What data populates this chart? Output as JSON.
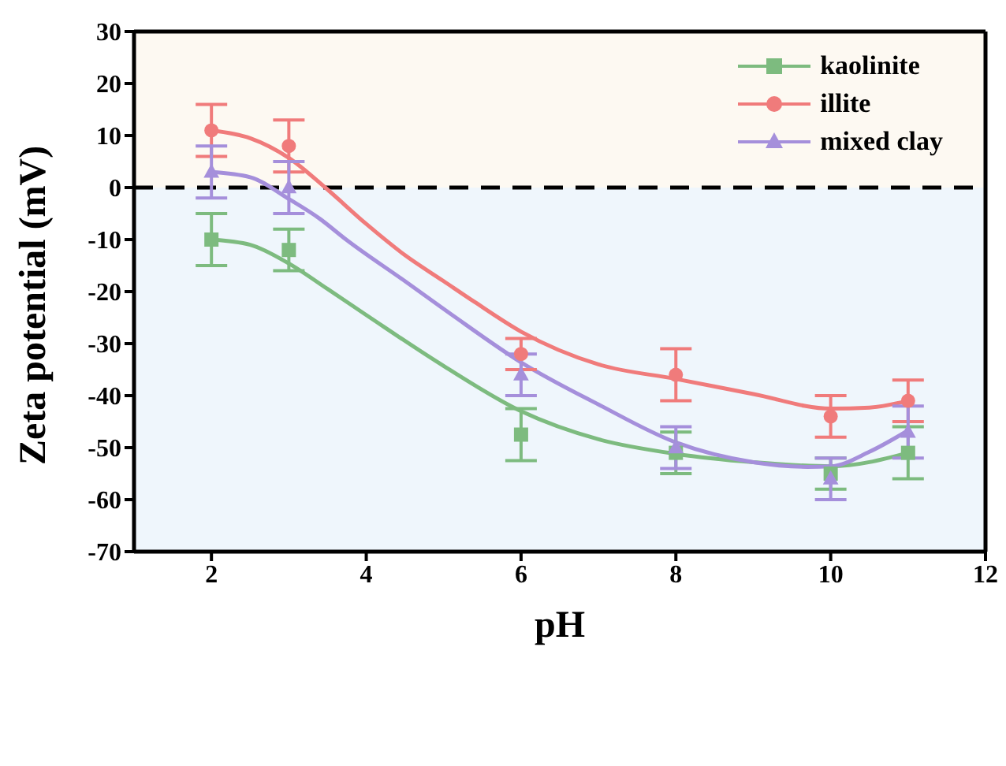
{
  "chart_data": {
    "type": "scatter",
    "xlabel": "pH",
    "ylabel": "Zeta potential (mV)",
    "xlim": [
      1,
      12
    ],
    "xticks": [
      2,
      4,
      6,
      8,
      10,
      12
    ],
    "ylim": [
      -70,
      30
    ],
    "yticks": [
      -70,
      -60,
      -50,
      -40,
      -30,
      -20,
      -10,
      0,
      10,
      20,
      30
    ],
    "legend": "top right",
    "x": [
      2,
      3,
      6,
      8,
      10,
      11
    ],
    "series": [
      {
        "name": "kaolinite",
        "color": "#7dbb7f",
        "marker": "square",
        "values": [
          -10,
          -12,
          -47.5,
          -51,
          -55,
          -51
        ],
        "errors": [
          5,
          4,
          5,
          4,
          3,
          5
        ]
      },
      {
        "name": "illite",
        "color": "#f07b7b",
        "marker": "circle",
        "values": [
          11,
          8,
          -32,
          -36,
          -44,
          -41
        ],
        "errors": [
          5,
          5,
          3,
          5,
          4,
          4
        ]
      },
      {
        "name": "mixed clay",
        "color": "#a58fdb",
        "marker": "triangle",
        "values": [
          3,
          0,
          -36,
          -50,
          -56,
          -47
        ],
        "errors": [
          5,
          5,
          4,
          4,
          4,
          5
        ]
      },
      {
        "type": "line",
        "color": "#7dbb7f",
        "marker": "none",
        "x": [
          2,
          2.5,
          3,
          3.5,
          4,
          5,
          6,
          7,
          8,
          9,
          10,
          11
        ],
        "values": [
          -10,
          -11,
          -14.6,
          -19.5,
          -24.5,
          -34.3,
          -43,
          -48.4,
          -51.2,
          -52.8,
          -53.6,
          -51
        ]
      },
      {
        "type": "line",
        "color": "#f07b7b",
        "marker": "none",
        "x": [
          2,
          2.5,
          3,
          3.47,
          4,
          4.5,
          5,
          5.4,
          6,
          7,
          8,
          9,
          10,
          10.5,
          11
        ],
        "values": [
          11,
          9.5,
          5.7,
          0,
          -7,
          -13,
          -18,
          -22,
          -27.7,
          -34,
          -36.8,
          -39.7,
          -42.5,
          -42.3,
          -41
        ]
      },
      {
        "type": "line",
        "color": "#a58fdb",
        "marker": "none",
        "x": [
          2,
          2.5,
          3,
          3.4,
          3.74,
          4.5,
          5.1,
          6,
          7,
          8,
          9,
          9.7,
          10,
          10.5,
          11
        ],
        "values": [
          3,
          2,
          -2.2,
          -6,
          -10,
          -18,
          -24.4,
          -33.6,
          -41.7,
          -49,
          -52.8,
          -53.7,
          -53.6,
          -50.8,
          -46.7
        ]
      }
    ],
    "ref_lines": [
      {
        "axis": "y",
        "value": 0,
        "color": "#000000",
        "line_style": "dashed"
      }
    ],
    "bands": [
      {
        "axis": "y",
        "from": 0,
        "to": 30,
        "color": "#fdf9f2"
      },
      {
        "axis": "y",
        "from": -70,
        "to": 0,
        "color": "#eff6fc"
      }
    ]
  }
}
